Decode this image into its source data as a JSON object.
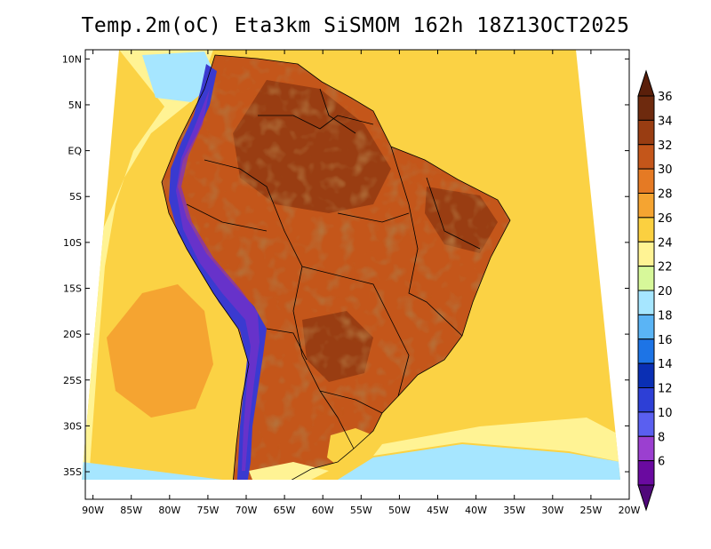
{
  "title": "Temp.2m(oC) Eta3km SiSMOM 162h 18Z13OCT2025",
  "x_axis": {
    "unit": "longitude",
    "range": [
      -91,
      -20
    ],
    "ticks": [
      {
        "value": -90,
        "label": "90W"
      },
      {
        "value": -85,
        "label": "85W"
      },
      {
        "value": -80,
        "label": "80W"
      },
      {
        "value": -75,
        "label": "75W"
      },
      {
        "value": -70,
        "label": "70W"
      },
      {
        "value": -65,
        "label": "65W"
      },
      {
        "value": -60,
        "label": "60W"
      },
      {
        "value": -55,
        "label": "55W"
      },
      {
        "value": -50,
        "label": "50W"
      },
      {
        "value": -45,
        "label": "45W"
      },
      {
        "value": -40,
        "label": "40W"
      },
      {
        "value": -35,
        "label": "35W"
      },
      {
        "value": -30,
        "label": "30W"
      },
      {
        "value": -25,
        "label": "25W"
      },
      {
        "value": -20,
        "label": "20W"
      }
    ]
  },
  "y_axis": {
    "unit": "latitude",
    "range": [
      -38,
      11
    ],
    "ticks": [
      {
        "value": 10,
        "label": "10N"
      },
      {
        "value": 5,
        "label": "5N"
      },
      {
        "value": 0,
        "label": "EQ"
      },
      {
        "value": -5,
        "label": "5S"
      },
      {
        "value": -10,
        "label": "10S"
      },
      {
        "value": -15,
        "label": "15S"
      },
      {
        "value": -20,
        "label": "20S"
      },
      {
        "value": -25,
        "label": "25S"
      },
      {
        "value": -30,
        "label": "30S"
      },
      {
        "value": -35,
        "label": "35S"
      }
    ]
  },
  "colorbar": {
    "levels": [
      {
        "label": "36",
        "color": "#6e2a0e"
      },
      {
        "label": "34",
        "color": "#993d12"
      },
      {
        "label": "32",
        "color": "#c4561a"
      },
      {
        "label": "30",
        "color": "#e57a24"
      },
      {
        "label": "28",
        "color": "#f5a431"
      },
      {
        "label": "26",
        "color": "#fbd040"
      },
      {
        "label": "24",
        "color": "#fff394"
      },
      {
        "label": "22",
        "color": "#d7f89a"
      },
      {
        "label": "20",
        "color": "#a6e6ff"
      },
      {
        "label": "18",
        "color": "#5ab4f5"
      },
      {
        "label": "16",
        "color": "#1d74e6"
      },
      {
        "label": "14",
        "color": "#0a2fb4"
      },
      {
        "label": "12",
        "color": "#2d3fd6"
      },
      {
        "label": "10",
        "color": "#5a5ff0"
      },
      {
        "label": "8",
        "color": "#9b3fd0"
      },
      {
        "label": "6",
        "color": "#6a0aa0"
      }
    ],
    "top_color": "#5a1f0a",
    "bottom_color": "#50087a"
  },
  "colors": {
    "ocean": "#fbd244",
    "ocean_warm": "#f5a431",
    "ocean_cool": "#fff394",
    "coast_cold": "#a6e6ff",
    "land_hot": "#c4561a",
    "land_hotter": "#993d12",
    "andes_cold": "#3a3ad0",
    "border": "#000000"
  }
}
